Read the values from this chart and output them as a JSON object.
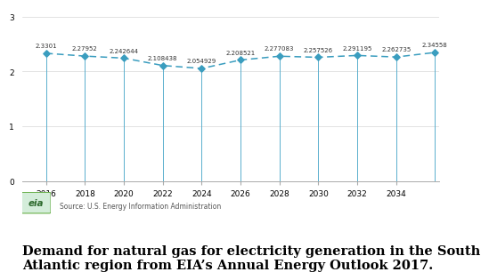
{
  "years": [
    2016,
    2018,
    2020,
    2022,
    2024,
    2026,
    2028,
    2030,
    2032,
    2034
  ],
  "values": [
    2.3301,
    2.27952,
    2.242644,
    2.108438,
    2.054929,
    2.208521,
    2.277083,
    2.257526,
    2.291195,
    2.262735,
    2.34558
  ],
  "labels": [
    "2.3301",
    "2.27952",
    "2.242644",
    "2.108438",
    "2.054929",
    "2.208521",
    "2.277083",
    "2.257526",
    "2.291195",
    "2.262735",
    "2.34558"
  ],
  "data_years": [
    2016,
    2018,
    2020,
    2022,
    2024,
    2026,
    2028,
    2030,
    2032,
    2034,
    2036
  ],
  "x_ticks": [
    2016,
    2018,
    2020,
    2022,
    2024,
    2026,
    2028,
    2030,
    2032,
    2034
  ],
  "y_ticks": [
    0,
    1,
    2,
    3
  ],
  "ylim": [
    0,
    3.15
  ],
  "xlim": [
    2014.8,
    2036.2
  ],
  "line_color": "#3a9dbf",
  "marker_color": "#3a9dbf",
  "vline_color": "#5aafce",
  "grid_color": "#d8d8d8",
  "background_color": "#ffffff",
  "source_text": "Source: U.S. Energy Information Administration",
  "caption": "Demand for natural gas for electricity generation in the South\nAtlantic region from EIA’s Annual Energy Outlook 2017.",
  "caption_fontsize": 10.5
}
